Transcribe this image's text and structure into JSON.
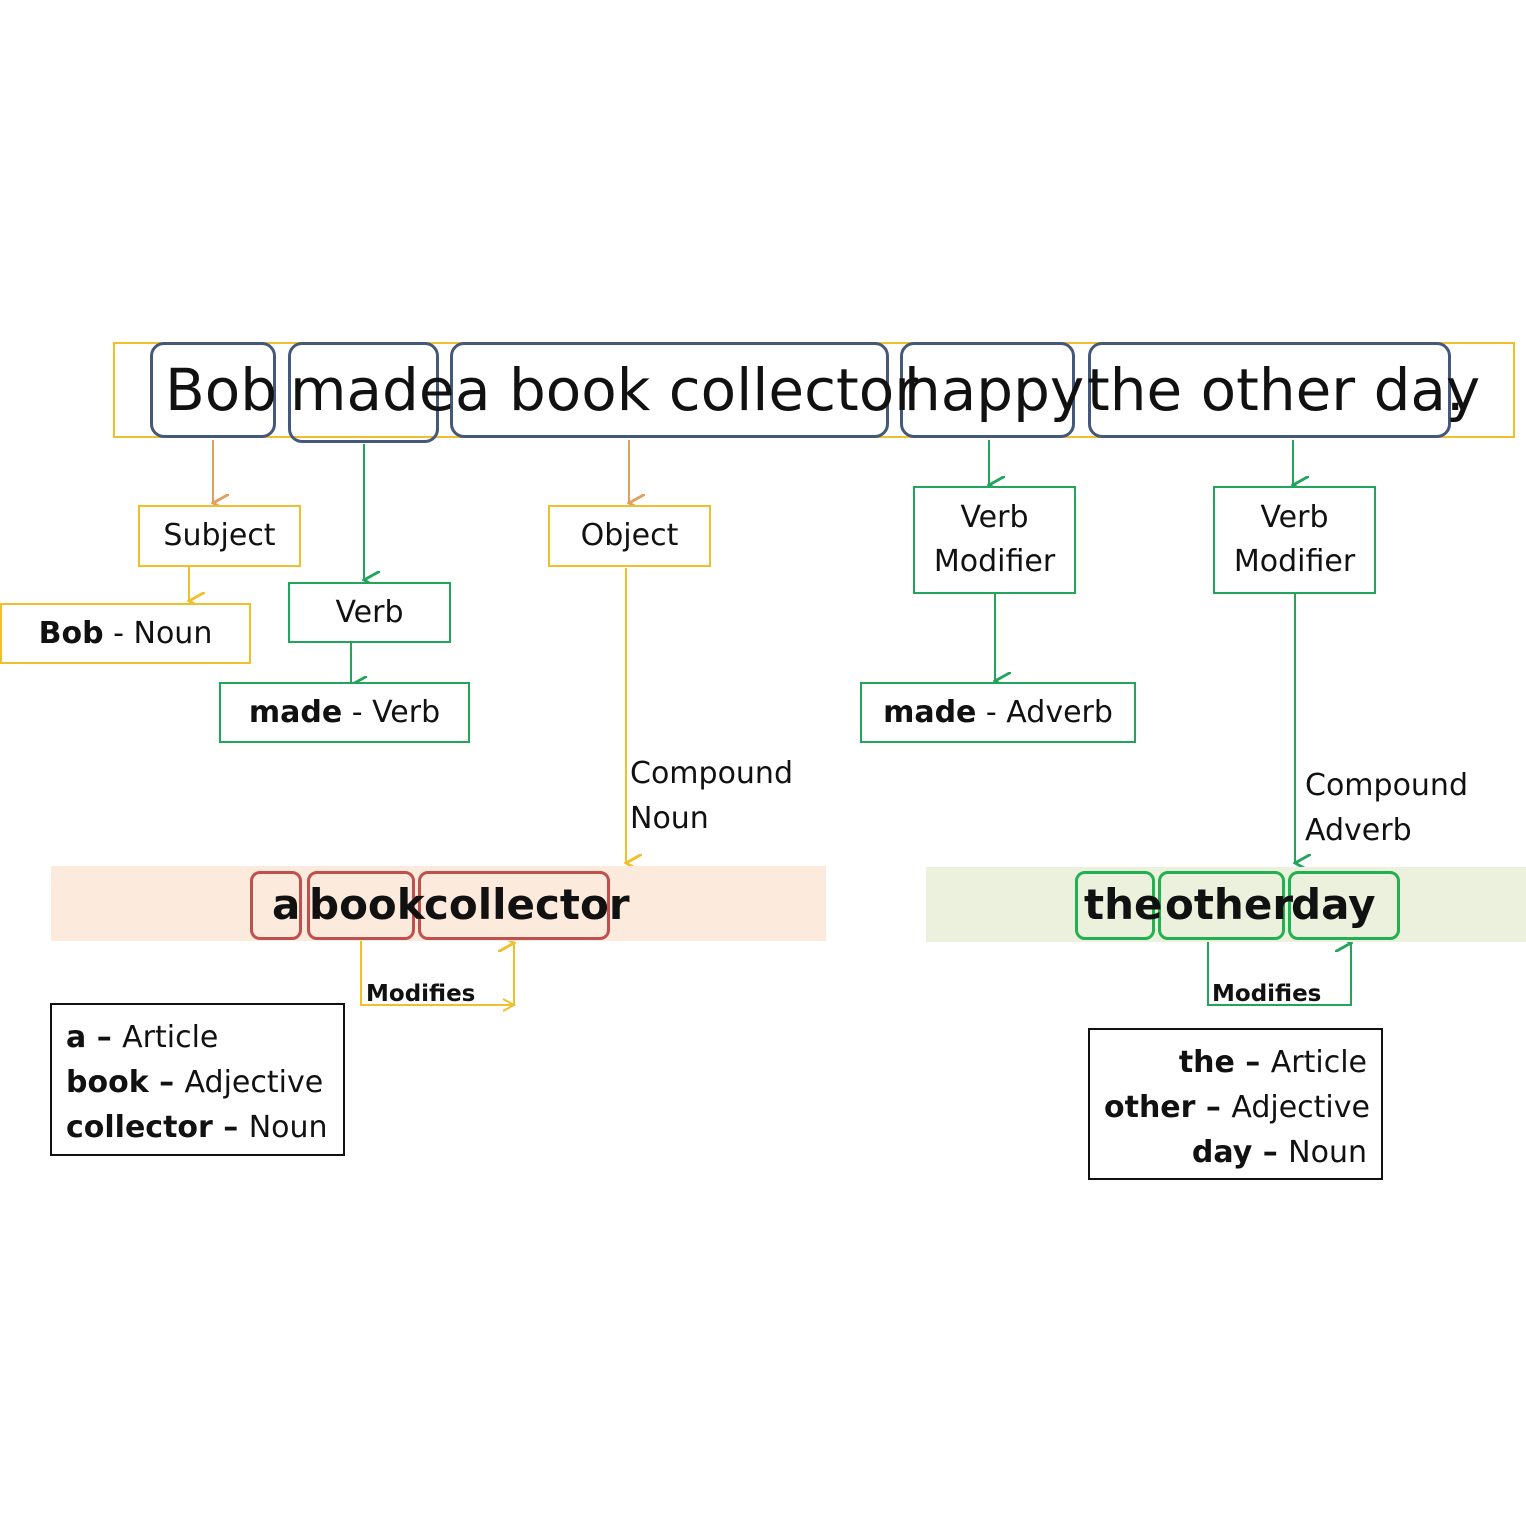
{
  "sentence": {
    "words": [
      "Bob",
      "made",
      "a book collector",
      "happy",
      "the other day"
    ],
    "period": "."
  },
  "roles": {
    "subject": "Subject",
    "object": "Object",
    "verb": "Verb",
    "verb_modifier_1": "Verb\nModifier",
    "verb_modifier_2": "Verb\nModifier"
  },
  "pos": {
    "bob": {
      "word": "Bob",
      "sep": " - ",
      "tag": "Noun"
    },
    "made_verb": {
      "word": "made",
      "sep": " - ",
      "tag": "Verb"
    },
    "made_adverb": {
      "word": "made",
      "sep": " - ",
      "tag": "Adverb"
    }
  },
  "compound_labels": {
    "noun_1": "Compound",
    "noun_2": "Noun",
    "adverb_1": "Compound",
    "adverb_2": "Adverb"
  },
  "compound_noun": {
    "chips": [
      "a",
      "book",
      "collector"
    ],
    "modifies": "Modifies",
    "legend": [
      {
        "word": "a",
        "sep": " – ",
        "tag": "Article"
      },
      {
        "word": "book",
        "sep": " – ",
        "tag": "Adjective"
      },
      {
        "word": "collector",
        "sep": " – ",
        "tag": "Noun"
      }
    ]
  },
  "compound_adverb": {
    "chips": [
      "the",
      "other",
      "day"
    ],
    "modifies": "Modifies",
    "legend": [
      {
        "word": "the",
        "sep": " – ",
        "tag": "Article"
      },
      {
        "word": "other",
        "sep": " – ",
        "tag": "Adjective"
      },
      {
        "word": "day",
        "sep": " – ",
        "tag": "Noun"
      }
    ]
  },
  "colors": {
    "word_box": "#44597a",
    "orange_line": "#f0c02c",
    "subject_arrow": "#e0a060",
    "green_line": "#22a55a",
    "red_chip": "#c0504d",
    "peach_band": "#fcebdd",
    "green_band": "#ebf1dd"
  }
}
